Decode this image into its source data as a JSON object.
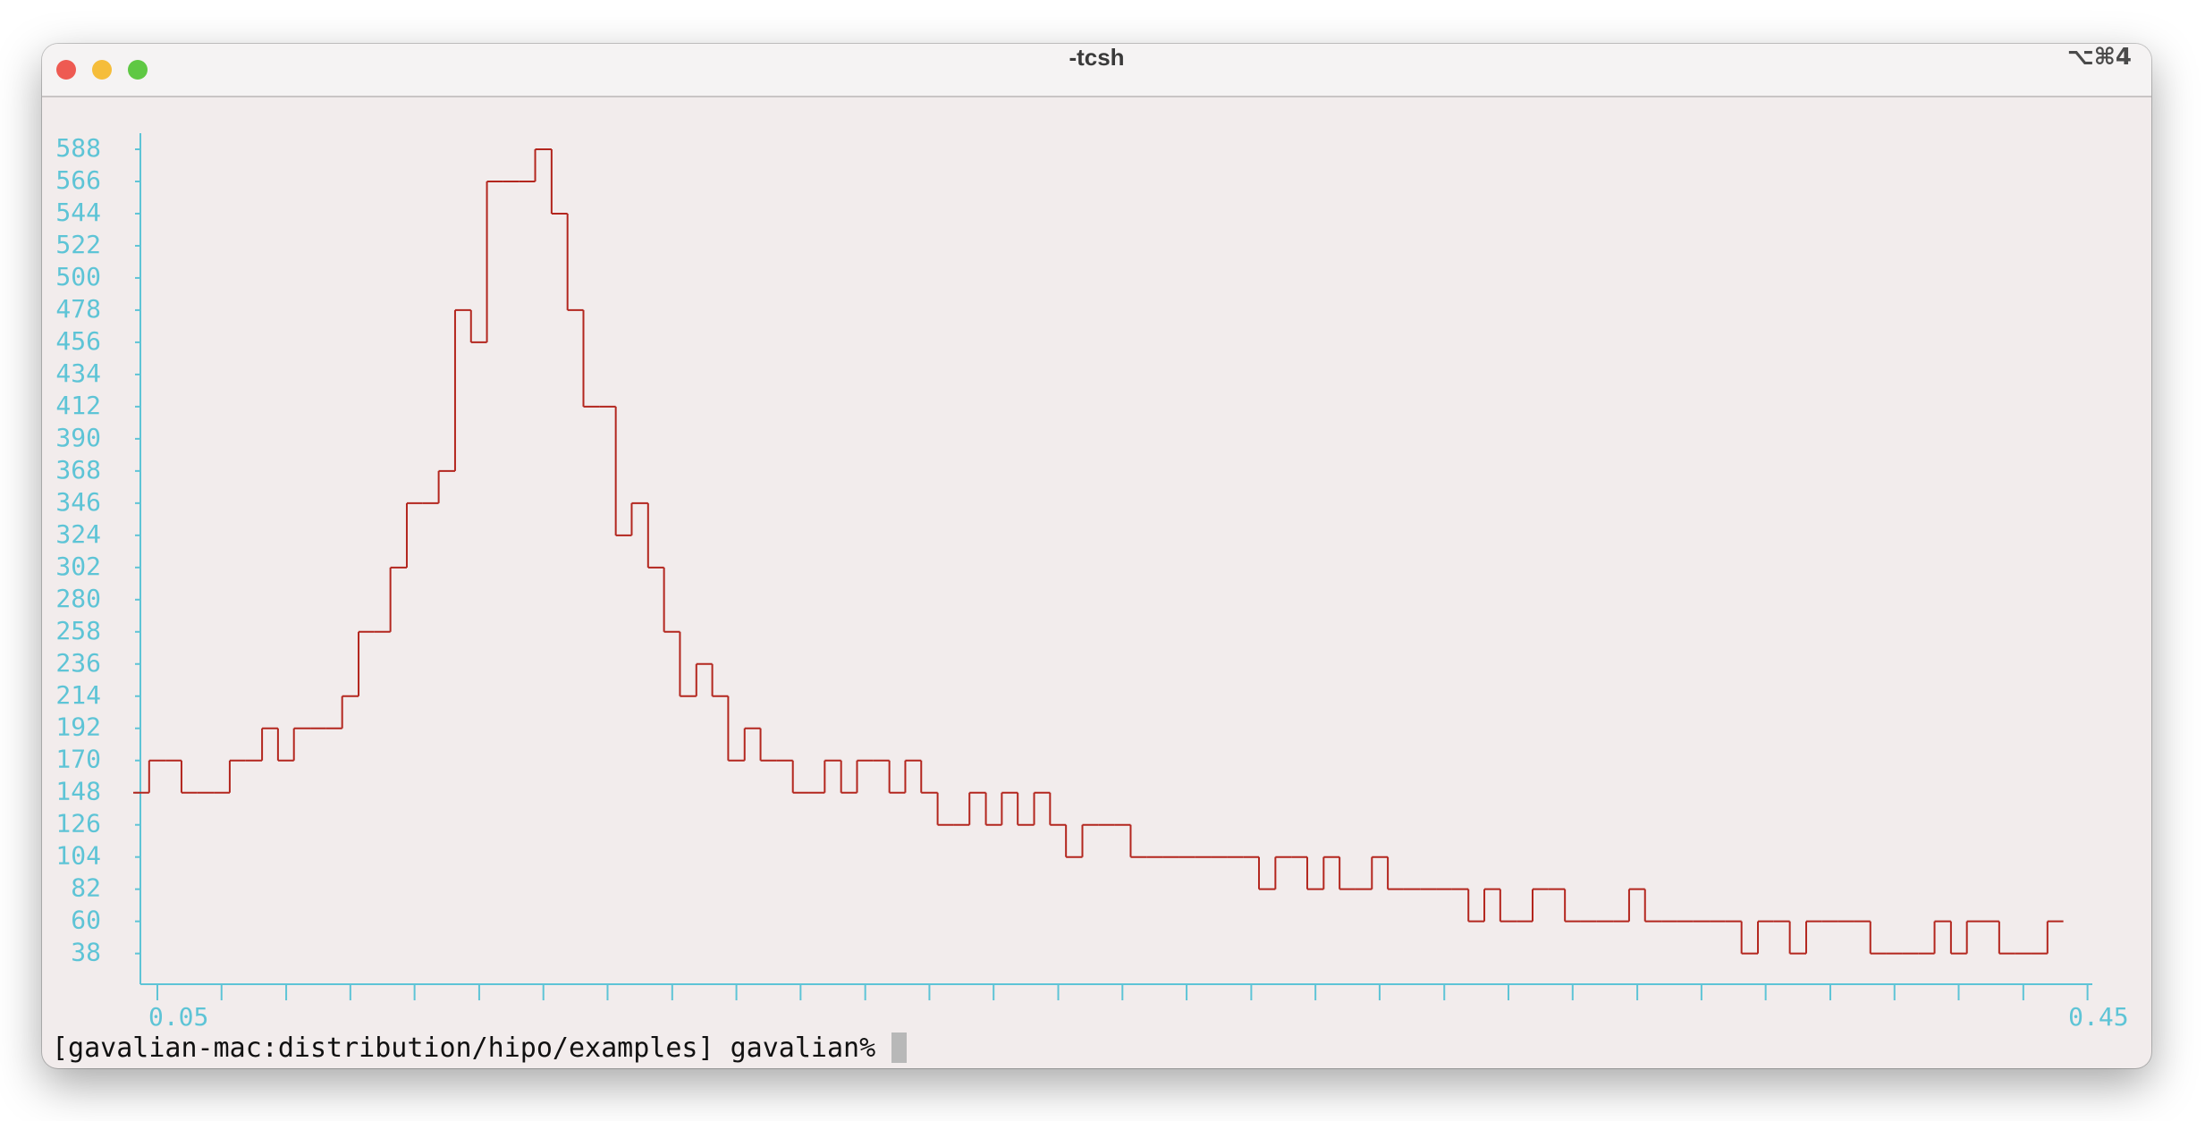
{
  "window": {
    "title": "-tcsh",
    "shortcut": "⌥⌘4"
  },
  "chart_data": {
    "type": "histogram",
    "color": "#b3261e",
    "axis_color": "#5ec4d6",
    "bins": [
      0.045,
      0.0483,
      0.0517,
      0.055,
      0.0583,
      0.0617,
      0.065,
      0.0683,
      0.0717,
      0.075,
      0.0783,
      0.0817,
      0.085,
      0.0883,
      0.0917,
      0.095,
      0.0983,
      0.1017,
      0.105,
      0.1083,
      0.1117,
      0.115,
      0.1183,
      0.1217,
      0.125,
      0.1283,
      0.1317,
      0.135,
      0.1383,
      0.1417,
      0.145,
      0.1483,
      0.1517,
      0.155,
      0.1583,
      0.1617,
      0.165,
      0.1683,
      0.1717,
      0.175,
      0.1783,
      0.1817,
      0.185,
      0.1883,
      0.1917,
      0.195,
      0.1983,
      0.2017,
      0.205,
      0.2083,
      0.2117,
      0.215,
      0.2183,
      0.2217,
      0.225,
      0.2283,
      0.2317,
      0.235,
      0.2383,
      0.2417,
      0.245,
      0.2483,
      0.2517,
      0.255,
      0.2583,
      0.2617,
      0.265,
      0.2683,
      0.2717,
      0.275,
      0.2783,
      0.2817,
      0.285,
      0.2883,
      0.2917,
      0.295,
      0.2983,
      0.3017,
      0.305,
      0.3083,
      0.3117,
      0.315,
      0.3183,
      0.3217,
      0.325,
      0.3283,
      0.3317,
      0.335,
      0.3383,
      0.3417,
      0.345,
      0.3483,
      0.3517,
      0.355,
      0.3583,
      0.3617,
      0.365,
      0.3683,
      0.3717,
      0.375,
      0.3783,
      0.3817,
      0.385,
      0.3883,
      0.3917,
      0.395,
      0.3983,
      0.4017,
      0.405,
      0.4083,
      0.4117,
      0.415,
      0.4183,
      0.4217,
      0.425,
      0.4283,
      0.4317,
      0.435,
      0.4383,
      0.4417,
      0.445
    ],
    "values": [
      148,
      170,
      170,
      148,
      148,
      148,
      170,
      170,
      192,
      170,
      192,
      192,
      192,
      214,
      258,
      258,
      302,
      346,
      346,
      368,
      478,
      456,
      566,
      566,
      566,
      588,
      544,
      478,
      412,
      412,
      324,
      346,
      302,
      258,
      214,
      236,
      214,
      170,
      192,
      170,
      170,
      148,
      148,
      170,
      148,
      170,
      170,
      148,
      170,
      148,
      126,
      126,
      148,
      126,
      148,
      126,
      148,
      126,
      104,
      126,
      126,
      126,
      104,
      104,
      104,
      104,
      104,
      104,
      104,
      104,
      82,
      104,
      104,
      82,
      104,
      82,
      82,
      104,
      82,
      82,
      82,
      82,
      82,
      60,
      82,
      60,
      60,
      82,
      82,
      60,
      60,
      60,
      60,
      82,
      60,
      60,
      60,
      60,
      60,
      60,
      38,
      60,
      60,
      38,
      60,
      60,
      60,
      60,
      38,
      38,
      38,
      38,
      60,
      38,
      60,
      60,
      38,
      38,
      38,
      60
    ],
    "xlim": [
      0.045,
      0.451
    ],
    "xticks": [
      0.05,
      0.45
    ],
    "xminor_ticks": [
      0.0633,
      0.0767,
      0.09,
      0.1033,
      0.1167,
      0.13,
      0.1433,
      0.1567,
      0.17,
      0.1833,
      0.1967,
      0.21,
      0.2233,
      0.2367,
      0.25,
      0.2633,
      0.2767,
      0.29,
      0.3033,
      0.3167,
      0.33,
      0.3433,
      0.3567,
      0.37,
      0.3833,
      0.3967,
      0.41,
      0.4233,
      0.4367
    ],
    "ylim": [
      17,
      599
    ],
    "yticks": [
      38,
      60,
      82,
      104,
      126,
      148,
      170,
      192,
      214,
      236,
      258,
      280,
      302,
      324,
      346,
      368,
      390,
      412,
      434,
      456,
      478,
      500,
      522,
      544,
      566,
      588
    ]
  },
  "prompt": "[gavalian-mac:distribution/hipo/examples] gavalian%"
}
